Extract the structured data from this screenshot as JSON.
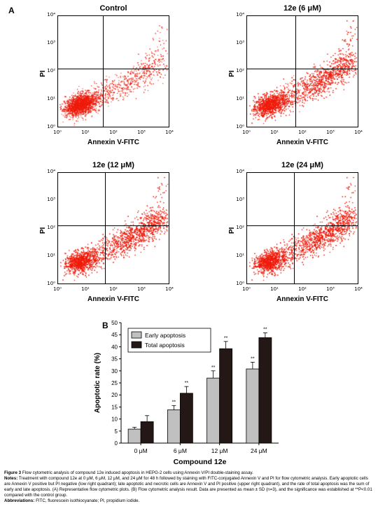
{
  "panel_a_label": "A",
  "panel_b_label": "B",
  "flow_plots": [
    {
      "title": "Control",
      "xlabel": "Annexin V-FITC",
      "ylabel": "PI"
    },
    {
      "title": "12e (6 μM)",
      "xlabel": "Annexin V-FITC",
      "ylabel": "PI"
    },
    {
      "title": "12e (12 μM)",
      "xlabel": "Annexin V-FITC",
      "ylabel": "PI"
    },
    {
      "title": "12e (24 μM)",
      "xlabel": "Annexin V-FITC",
      "ylabel": "PI"
    }
  ],
  "flow_ticks": [
    "10⁰",
    "10¹",
    "10²",
    "10³",
    "10⁴"
  ],
  "scatter_color": "#ee1c0c",
  "chart_data": {
    "type": "bar",
    "categories": [
      "0 μM",
      "6 μM",
      "12 μM",
      "24 μM"
    ],
    "series": [
      {
        "name": "Early apoptosis",
        "color": "#c0c0c0",
        "values": [
          5.8,
          13.8,
          27.0,
          30.8
        ],
        "errors": [
          0.8,
          1.8,
          3.0,
          2.8
        ],
        "sig": [
          "",
          "**",
          "**",
          "**"
        ]
      },
      {
        "name": "Total apoptosis",
        "color": "#231815",
        "values": [
          8.9,
          20.7,
          39.2,
          43.8
        ],
        "errors": [
          2.5,
          2.8,
          3.0,
          2.0
        ],
        "sig": [
          "",
          "**",
          "**",
          "**"
        ]
      }
    ],
    "xlabel": "Compound 12e",
    "ylabel": "Apoptotic rate (%)",
    "ylim": [
      0,
      50
    ],
    "yticks": [
      0,
      5,
      10,
      15,
      20,
      25,
      30,
      35,
      40,
      45,
      50
    ],
    "legend_position": "top-left"
  },
  "caption": {
    "figure_label": "Figure 3",
    "figure_text": "Flow cytometric analysis of compound 12e induced apoptosis in HEPG-2 cells using Annexin V/PI double-staining assay.",
    "notes_label": "Notes:",
    "notes_text": "Treatment with compound 12e at 0 μM, 6 μM, 12 μM, and 24 μM for 48 h followed by staining with FITC-conjugated Annexin V and PI for flow cytometric analysis. Early apoptotic cells are Annexin V positive but PI negative (low right quadrant); late apoptotic and necrotic cells are Annexin V and PI positive (upper right quadrant), and the rate of total apoptosis was the sum of early and late apoptosis. (A) Representative flow cytometric plots. (B) Flow cytometric analysis result. Data are presented as mean ± SD (n=3), and the significance was established at **P<0.01 compared with the control group.",
    "abbrev_label": "Abbreviations:",
    "abbrev_text": "FITC, fluorescein isothiocyanate; PI, propidium iodide."
  }
}
